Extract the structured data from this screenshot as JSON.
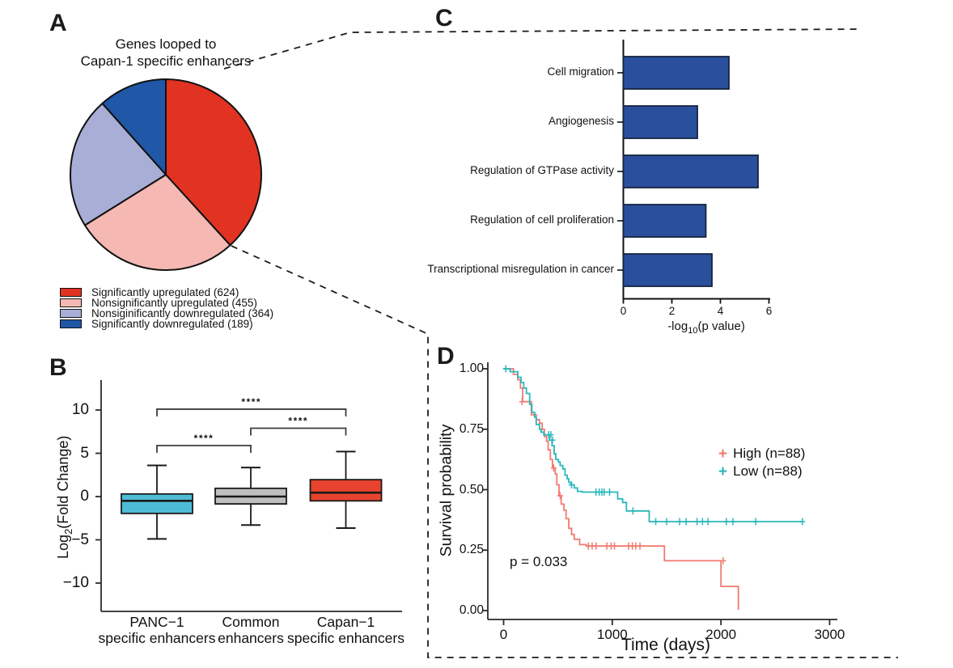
{
  "panel_labels": {
    "a": "A",
    "b": "B",
    "c": "C",
    "d": "D"
  },
  "panel_a": {
    "title_line1": "Genes looped to",
    "title_line2": "Capan-1 specific enhancers"
  },
  "chart_data": [
    {
      "id": "pie_genes_looped",
      "type": "pie",
      "title": "Genes looped to Capan-1 specific enhancers",
      "slices": [
        {
          "label": "Significantly upregulated (624)",
          "value": 624,
          "color": "#e13222"
        },
        {
          "label": "Nonsignificantly upregulated (455)",
          "value": 455,
          "color": "#f5b8b2"
        },
        {
          "label": "Nonsiginificantly downregulated (364)",
          "value": 364,
          "color": "#a9aed6"
        },
        {
          "label": "Significantly downregulated (189)",
          "value": 189,
          "color": "#2057a7"
        }
      ]
    },
    {
      "id": "go_enrichment_bars",
      "type": "bar",
      "orientation": "horizontal",
      "categories": [
        "Cell migration",
        "Angiogenesis",
        "Regulation of GTPase activity",
        "Regulation of cell proliferation",
        "Transcriptional misregulation in cancer"
      ],
      "values": [
        4.35,
        3.05,
        5.55,
        3.4,
        3.65
      ],
      "bar_color": "#2a4f9c",
      "xlabel_prefix": "-log",
      "xlabel_sub": "10",
      "xlabel_suffix": "(p value)",
      "xticks": [
        0,
        2,
        4,
        6
      ],
      "xtick_labels": [
        "0",
        "2",
        "4",
        "6"
      ],
      "xlim": [
        0,
        6.05
      ]
    },
    {
      "id": "fold_change_boxplot",
      "type": "box",
      "ylabel_prefix": "Log",
      "ylabel_sub": "2",
      "ylabel_suffix": "(Fold Change)",
      "yticks": [
        10,
        5,
        0,
        -5,
        -10
      ],
      "ytick_labels": [
        "10",
        "5",
        "0",
        "−5",
        "−10"
      ],
      "ylim": [
        -13.4,
        13.4
      ],
      "groups": [
        {
          "label_line1": "PANC−1",
          "label_line2": "specific enhancers",
          "color": "#4fbcd6",
          "whisker_low": -4.9,
          "q1": -1.95,
          "median": -0.5,
          "q3": 0.3,
          "whisker_high": 3.6
        },
        {
          "label_line1": "Common",
          "label_line2": "enhancers",
          "color": "#bfbfbf",
          "whisker_low": -3.3,
          "q1": -0.85,
          "median": 0.0,
          "q3": 0.95,
          "whisker_high": 3.35
        },
        {
          "label_line1": "Capan−1",
          "label_line2": "specific enhancers",
          "color": "#e8432e",
          "whisker_low": -3.65,
          "q1": -0.5,
          "median": 0.45,
          "q3": 1.95,
          "whisker_high": 5.2
        }
      ],
      "significance": [
        {
          "group1": 0,
          "group2": 1,
          "y": 5.9,
          "stars": "****"
        },
        {
          "group1": 1,
          "group2": 2,
          "y": 7.9,
          "stars": "****"
        },
        {
          "group1": 0,
          "group2": 2,
          "y": 10.1,
          "stars": "****"
        }
      ]
    },
    {
      "id": "survival_km",
      "type": "line",
      "ylabel": "Survival probability",
      "xlabel": "Time (days)",
      "p_value_text": "p = 0.033",
      "xticks": [
        0,
        1000,
        2000,
        3000
      ],
      "xtick_labels": [
        "0",
        "1000",
        "2000",
        "3000"
      ],
      "ytick_labels": [
        "1.00",
        "0.75",
        "0.50",
        "0.25",
        "0.00"
      ],
      "yticks": [
        1.0,
        0.75,
        0.5,
        0.25,
        0.0
      ],
      "series": [
        {
          "name": "High (n=88)",
          "color": "#ef7a70",
          "end_time": 2160,
          "events": [
            [
              90,
              0.977
            ],
            [
              130,
              0.955
            ],
            [
              155,
              0.92
            ],
            [
              175,
              0.864
            ],
            [
              255,
              0.81
            ],
            [
              300,
              0.79
            ],
            [
              330,
              0.775
            ],
            [
              355,
              0.75
            ],
            [
              375,
              0.72
            ],
            [
              395,
              0.7
            ],
            [
              410,
              0.665
            ],
            [
              430,
              0.625
            ],
            [
              450,
              0.59
            ],
            [
              475,
              0.565
            ],
            [
              490,
              0.52
            ],
            [
              510,
              0.475
            ],
            [
              530,
              0.44
            ],
            [
              555,
              0.415
            ],
            [
              575,
              0.38
            ],
            [
              600,
              0.34
            ],
            [
              625,
              0.315
            ],
            [
              650,
              0.295
            ],
            [
              700,
              0.273
            ],
            [
              760,
              0.267
            ],
            [
              1480,
              0.206
            ],
            [
              2000,
              0.1
            ],
            [
              2160,
              0.003
            ]
          ],
          "censors": [
            [
              170,
              0.864
            ],
            [
              460,
              0.59
            ],
            [
              520,
              0.475
            ],
            [
              780,
              0.267
            ],
            [
              815,
              0.267
            ],
            [
              850,
              0.267
            ],
            [
              950,
              0.267
            ],
            [
              990,
              0.267
            ],
            [
              1020,
              0.267
            ],
            [
              1150,
              0.267
            ],
            [
              1185,
              0.267
            ],
            [
              1215,
              0.267
            ],
            [
              1255,
              0.267
            ],
            [
              2020,
              0.206
            ]
          ]
        },
        {
          "name": "Low (n=88)",
          "color": "#2ab7bc",
          "end_time": 2750,
          "events": [
            [
              60,
              0.988
            ],
            [
              130,
              0.965
            ],
            [
              160,
              0.943
            ],
            [
              185,
              0.92
            ],
            [
              210,
              0.898
            ],
            [
              240,
              0.853
            ],
            [
              260,
              0.82
            ],
            [
              285,
              0.8
            ],
            [
              300,
              0.77
            ],
            [
              330,
              0.75
            ],
            [
              345,
              0.738
            ],
            [
              370,
              0.727
            ],
            [
              420,
              0.705
            ],
            [
              445,
              0.682
            ],
            [
              465,
              0.648
            ],
            [
              480,
              0.625
            ],
            [
              505,
              0.614
            ],
            [
              520,
              0.6
            ],
            [
              545,
              0.586
            ],
            [
              565,
              0.56
            ],
            [
              585,
              0.545
            ],
            [
              600,
              0.53
            ],
            [
              620,
              0.52
            ],
            [
              650,
              0.507
            ],
            [
              680,
              0.493
            ],
            [
              720,
              0.49
            ],
            [
              1050,
              0.462
            ],
            [
              1095,
              0.447
            ],
            [
              1130,
              0.412
            ],
            [
              1340,
              0.368
            ]
          ],
          "censors": [
            [
              20,
              1.0
            ],
            [
              415,
              0.727
            ],
            [
              435,
              0.727
            ],
            [
              450,
              0.705
            ],
            [
              625,
              0.52
            ],
            [
              850,
              0.49
            ],
            [
              880,
              0.49
            ],
            [
              905,
              0.49
            ],
            [
              925,
              0.49
            ],
            [
              975,
              0.49
            ],
            [
              1190,
              0.412
            ],
            [
              1400,
              0.368
            ],
            [
              1500,
              0.368
            ],
            [
              1620,
              0.368
            ],
            [
              1680,
              0.368
            ],
            [
              1780,
              0.368
            ],
            [
              1830,
              0.368
            ],
            [
              1880,
              0.368
            ],
            [
              2050,
              0.368
            ],
            [
              2110,
              0.368
            ],
            [
              2320,
              0.368
            ],
            [
              2750,
              0.368
            ]
          ]
        }
      ]
    }
  ]
}
